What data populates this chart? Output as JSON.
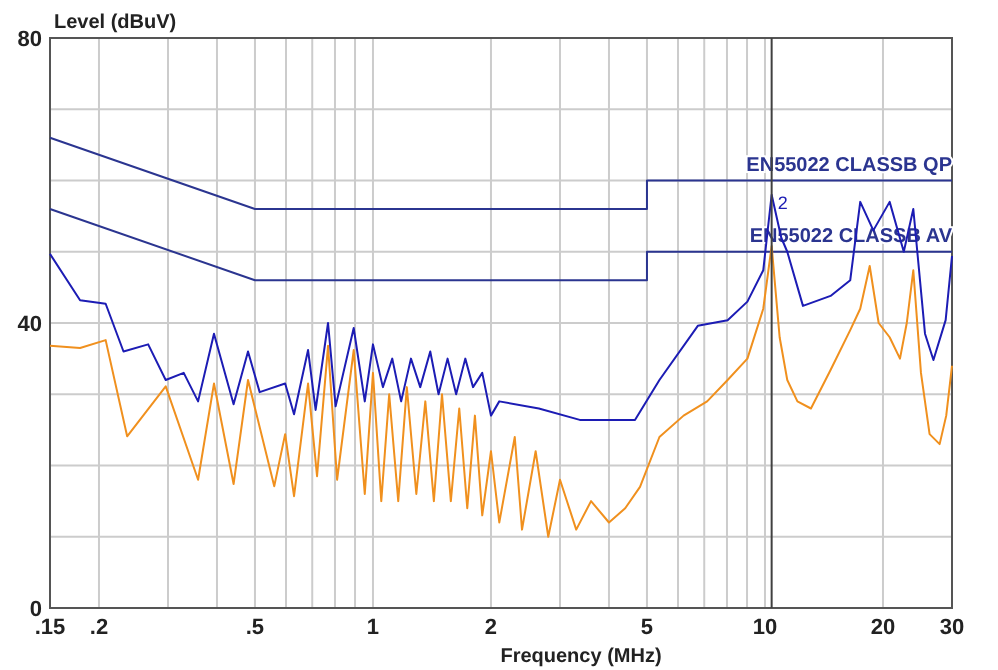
{
  "chart_data": {
    "type": "line",
    "xlabel": "Frequency (MHz)",
    "ylabel": "Level (dBuV)",
    "log": "x",
    "grid": true,
    "xlim": [
      0.15,
      30
    ],
    "ylim": [
      0,
      80
    ],
    "xticks": [
      {
        "value": 0.15,
        "label": ".15"
      },
      {
        "value": 0.2,
        "label": ".2"
      },
      {
        "value": 0.3,
        "label": null
      },
      {
        "value": 0.4,
        "label": null
      },
      {
        "value": 0.5,
        "label": ".5"
      },
      {
        "value": 0.6,
        "label": null
      },
      {
        "value": 0.7,
        "label": null
      },
      {
        "value": 0.8,
        "label": null
      },
      {
        "value": 0.9,
        "label": null
      },
      1,
      2,
      {
        "value": 3,
        "label": null
      },
      {
        "value": 4,
        "label": null
      },
      5,
      {
        "value": 6,
        "label": null
      },
      {
        "value": 7,
        "label": null
      },
      {
        "value": 8,
        "label": null
      },
      {
        "value": 9,
        "label": null
      },
      10,
      20,
      30
    ],
    "yticks": [
      0,
      {
        "value": 10,
        "label": null
      },
      {
        "value": 20,
        "label": null
      },
      {
        "value": 30,
        "label": null
      },
      40,
      {
        "value": 50,
        "label": null
      },
      {
        "value": 60,
        "label": null
      },
      {
        "value": 70,
        "label": null
      },
      80
    ],
    "ref_lines": [
      {
        "axis": "x",
        "value": 10.4,
        "color": "#404040"
      }
    ],
    "annotations": [
      {
        "text": "2",
        "x": 10.4,
        "y": 56
      }
    ],
    "series": [
      {
        "name": "EN55022 CLASSB QP",
        "color": "#2b3590",
        "x": [
          0.15,
          0.5,
          5,
          5,
          30
        ],
        "values": [
          66,
          56,
          56,
          60,
          60
        ]
      },
      {
        "name": "EN55022 CLASSB AV",
        "color": "#2b3590",
        "x": [
          0.15,
          0.5,
          5,
          5,
          30
        ],
        "values": [
          56,
          46,
          46,
          50,
          50
        ]
      },
      {
        "color": "#f0901e",
        "x": [
          0.15,
          0.179,
          0.208,
          0.236,
          0.296,
          0.358,
          0.393,
          0.441,
          0.48,
          0.56,
          0.597,
          0.629,
          0.683,
          0.72,
          0.768,
          0.81,
          0.893,
          0.953,
          1.0,
          1.05,
          1.1,
          1.16,
          1.22,
          1.29,
          1.36,
          1.43,
          1.5,
          1.58,
          1.66,
          1.74,
          1.82,
          1.9,
          2.0,
          2.1,
          2.3,
          2.4,
          2.6,
          2.8,
          3.0,
          3.3,
          3.6,
          4.0,
          4.4,
          4.8,
          5.38,
          6.2,
          7.12,
          8.03,
          9.02,
          9.9,
          10.4,
          10.9,
          11.4,
          12.1,
          13.1,
          14.7,
          16.5,
          17.5,
          18.5,
          19.5,
          20.8,
          22.1,
          23.0,
          23.9,
          25.0,
          26.3,
          27.9,
          29.0,
          30
        ],
        "values": [
          36.8,
          36.5,
          37.6,
          24.1,
          31.1,
          18,
          31.5,
          17.4,
          32,
          17.1,
          24.4,
          15.7,
          31.5,
          18.5,
          36.8,
          18,
          36.2,
          16,
          33,
          15,
          30,
          15,
          31,
          16,
          29,
          15,
          30,
          15,
          28,
          14,
          27,
          13,
          22,
          12,
          24,
          11,
          22,
          10,
          18,
          11,
          15,
          12,
          14,
          17,
          24,
          27,
          29,
          32,
          35,
          42,
          50.8,
          38,
          32,
          29,
          28,
          33.4,
          39,
          42,
          48,
          40,
          38,
          35,
          40,
          47.4,
          33,
          24.4,
          23,
          27,
          34
        ]
      },
      {
        "color": "#1c1cb4",
        "x": [
          0.15,
          0.179,
          0.208,
          0.231,
          0.267,
          0.296,
          0.329,
          0.358,
          0.393,
          0.441,
          0.48,
          0.514,
          0.597,
          0.629,
          0.683,
          0.714,
          0.768,
          0.803,
          0.893,
          0.953,
          1.0,
          1.06,
          1.12,
          1.18,
          1.25,
          1.32,
          1.4,
          1.47,
          1.55,
          1.63,
          1.72,
          1.8,
          1.9,
          2.0,
          2.1,
          2.65,
          3.37,
          4.28,
          4.66,
          5.38,
          6.74,
          8.03,
          9.02,
          9.9,
          10.4,
          11.0,
          11.4,
          12.5,
          14.7,
          16.5,
          17.5,
          18.9,
          20.8,
          22.6,
          23.9,
          25.6,
          26.9,
          28.9,
          30
        ],
        "values": [
          49.7,
          43.2,
          42.7,
          36,
          37,
          32,
          33,
          29,
          38.5,
          28.6,
          36,
          30.3,
          31.5,
          27.2,
          36.2,
          27.8,
          40,
          28.3,
          39.3,
          29,
          37,
          31,
          35,
          29,
          35,
          31,
          36,
          30,
          35,
          30,
          35,
          31,
          33,
          27,
          29,
          28,
          26.4,
          26.4,
          26.4,
          32,
          39.6,
          40.4,
          43,
          47.4,
          58,
          52,
          50,
          42.4,
          43.8,
          46,
          57,
          53,
          57,
          50,
          56,
          38.5,
          34.8,
          40.4,
          49.4
        ]
      }
    ]
  }
}
